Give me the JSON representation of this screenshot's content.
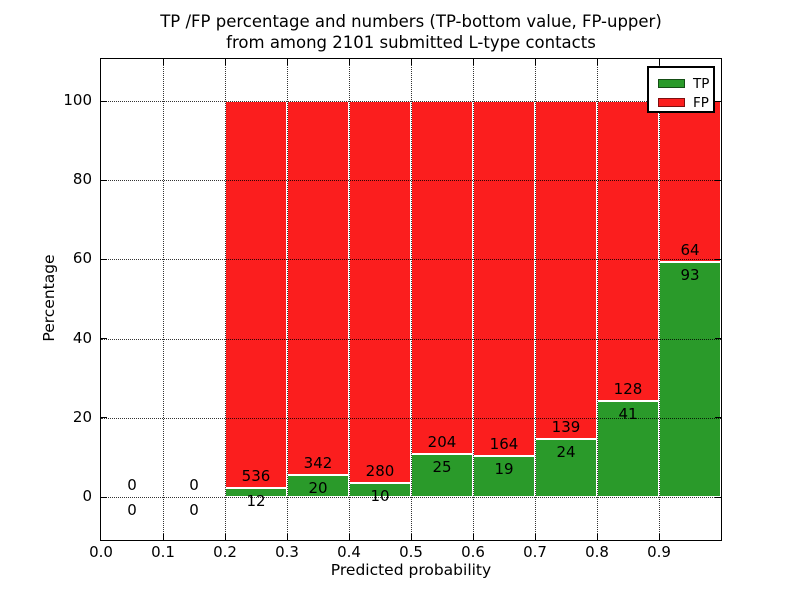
{
  "title": {
    "line1": "TP /FP percentage and numbers (TP-bottom value, FP-upper)",
    "line2": "from among 2101 submitted L-type contacts"
  },
  "axes": {
    "xlabel": "Predicted probability",
    "ylabel": "Percentage"
  },
  "legend": {
    "items": [
      {
        "label": "TP",
        "color": "#2a9a2a"
      },
      {
        "label": "FP",
        "color": "#fb1e1e"
      }
    ],
    "position": "upper right"
  },
  "colors": {
    "tp": "#2a9a2a",
    "fp": "#fb1e1e",
    "bar_edge": "#ffffff",
    "background": "#ffffff",
    "text": "#000000"
  },
  "chart_data": {
    "type": "bar",
    "stacked": true,
    "orientation": "vertical",
    "title": "TP /FP percentage and numbers (TP-bottom value, FP-upper) from among 2101 submitted L-type contacts",
    "xlabel": "Predicted probability",
    "ylabel": "Percentage",
    "xlim": [
      0.0,
      1.0
    ],
    "ylim": [
      -10,
      110
    ],
    "x_tick_labels": [
      "0.0",
      "0.1",
      "0.2",
      "0.3",
      "0.4",
      "0.5",
      "0.6",
      "0.7",
      "0.8",
      "0.9"
    ],
    "y_tick_values": [
      0,
      20,
      40,
      60,
      80,
      100
    ],
    "grid": true,
    "grid_style": "dotted, drawn over bars",
    "legend_position": "upper right",
    "units": "percent of bin total (TP+FP = 100%)",
    "total_contacts": 2101,
    "bins": [
      {
        "x_start": 0.0,
        "x_end": 0.1,
        "tp": 0,
        "fp": 0
      },
      {
        "x_start": 0.1,
        "x_end": 0.2,
        "tp": 0,
        "fp": 0
      },
      {
        "x_start": 0.2,
        "x_end": 0.3,
        "tp": 12,
        "fp": 536
      },
      {
        "x_start": 0.3,
        "x_end": 0.4,
        "tp": 20,
        "fp": 342
      },
      {
        "x_start": 0.4,
        "x_end": 0.5,
        "tp": 10,
        "fp": 280
      },
      {
        "x_start": 0.5,
        "x_end": 0.6,
        "tp": 25,
        "fp": 204
      },
      {
        "x_start": 0.6,
        "x_end": 0.7,
        "tp": 19,
        "fp": 164
      },
      {
        "x_start": 0.7,
        "x_end": 0.8,
        "tp": 24,
        "fp": 139
      },
      {
        "x_start": 0.8,
        "x_end": 0.9,
        "tp": 41,
        "fp": 128
      },
      {
        "x_start": 0.9,
        "x_end": 1.0,
        "tp": 93,
        "fp": 64
      }
    ],
    "series": [
      {
        "name": "TP",
        "color": "#2a9a2a",
        "counts": [
          0,
          0,
          12,
          20,
          10,
          25,
          19,
          24,
          41,
          93
        ]
      },
      {
        "name": "FP",
        "color": "#fb1e1e",
        "counts": [
          0,
          0,
          536,
          342,
          280,
          204,
          164,
          139,
          128,
          64
        ]
      }
    ]
  }
}
